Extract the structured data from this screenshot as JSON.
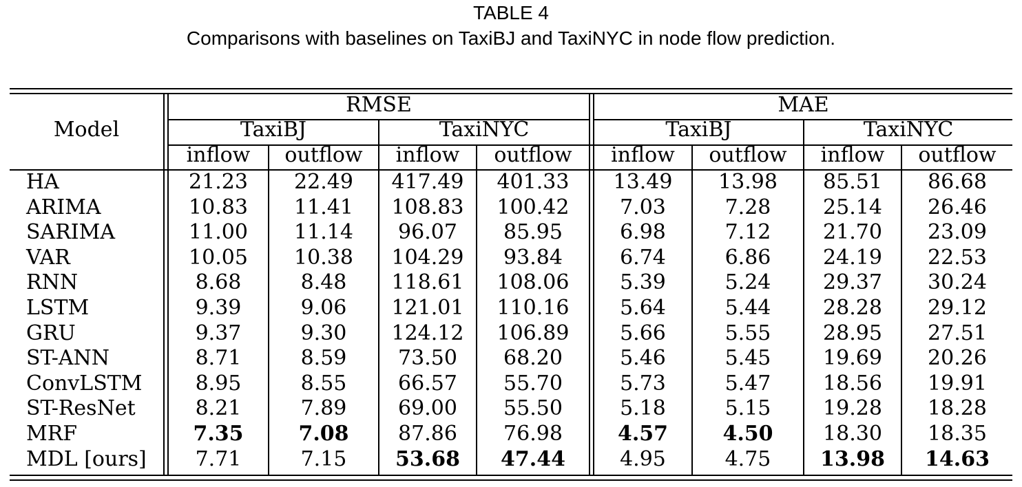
{
  "caption": {
    "label": "TABLE 4",
    "text": "Comparisons with baselines on TaxiBJ and TaxiNYC in node flow prediction."
  },
  "table": {
    "model_header": "Model",
    "metrics": [
      "RMSE",
      "MAE"
    ],
    "datasets": [
      "TaxiBJ",
      "TaxiNYC",
      "TaxiBJ",
      "TaxiNYC"
    ],
    "flows": [
      "inflow",
      "outflow",
      "inflow",
      "outflow",
      "inflow",
      "outflow",
      "inflow",
      "outflow"
    ],
    "rows": [
      {
        "model": "HA",
        "values": [
          "21.23",
          "22.49",
          "417.49",
          "401.33",
          "13.49",
          "13.98",
          "85.51",
          "86.68"
        ],
        "bold": []
      },
      {
        "model": "ARIMA",
        "values": [
          "10.83",
          "11.41",
          "108.83",
          "100.42",
          "7.03",
          "7.28",
          "25.14",
          "26.46"
        ],
        "bold": []
      },
      {
        "model": "SARIMA",
        "values": [
          "11.00",
          "11.14",
          "96.07",
          "85.95",
          "6.98",
          "7.12",
          "21.70",
          "23.09"
        ],
        "bold": []
      },
      {
        "model": "VAR",
        "values": [
          "10.05",
          "10.38",
          "104.29",
          "93.84",
          "6.74",
          "6.86",
          "24.19",
          "22.53"
        ],
        "bold": []
      },
      {
        "model": "RNN",
        "values": [
          "8.68",
          "8.48",
          "118.61",
          "108.06",
          "5.39",
          "5.24",
          "29.37",
          "30.24"
        ],
        "bold": []
      },
      {
        "model": "LSTM",
        "values": [
          "9.39",
          "9.06",
          "121.01",
          "110.16",
          "5.64",
          "5.44",
          "28.28",
          "29.12"
        ],
        "bold": []
      },
      {
        "model": "GRU",
        "values": [
          "9.37",
          "9.30",
          "124.12",
          "106.89",
          "5.66",
          "5.55",
          "28.95",
          "27.51"
        ],
        "bold": []
      },
      {
        "model": "ST-ANN",
        "values": [
          "8.71",
          "8.59",
          "73.50",
          "68.20",
          "5.46",
          "5.45",
          "19.69",
          "20.26"
        ],
        "bold": []
      },
      {
        "model": "ConvLSTM",
        "values": [
          "8.95",
          "8.55",
          "66.57",
          "55.70",
          "5.73",
          "5.47",
          "18.56",
          "19.91"
        ],
        "bold": []
      },
      {
        "model": "ST-ResNet",
        "values": [
          "8.21",
          "7.89",
          "69.00",
          "55.50",
          "5.18",
          "5.15",
          "19.28",
          "18.28"
        ],
        "bold": []
      },
      {
        "model": "MRF",
        "values": [
          "7.35",
          "7.08",
          "87.86",
          "76.98",
          "4.57",
          "4.50",
          "18.30",
          "18.35"
        ],
        "bold": [
          0,
          1,
          4,
          5
        ]
      },
      {
        "model": "MDL [ours]",
        "values": [
          "7.71",
          "7.15",
          "53.68",
          "47.44",
          "4.95",
          "4.75",
          "13.98",
          "14.63"
        ],
        "bold": [
          2,
          3,
          6,
          7
        ]
      }
    ]
  }
}
